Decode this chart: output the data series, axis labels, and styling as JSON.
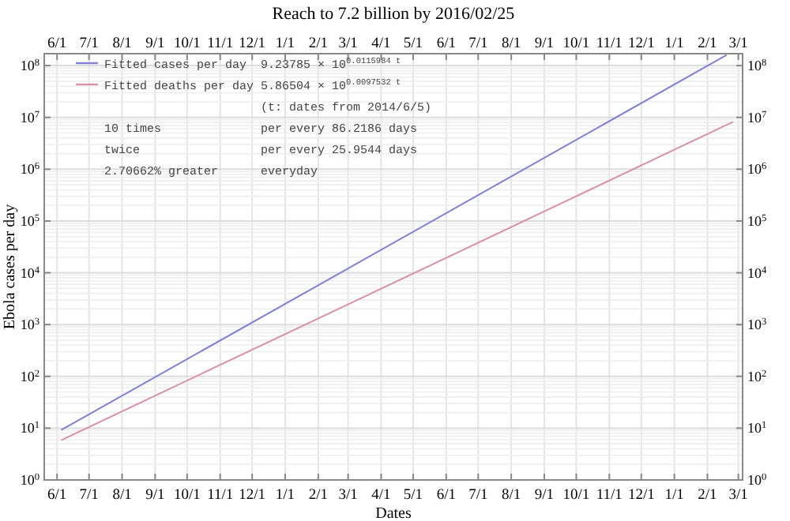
{
  "chart_data": {
    "type": "line",
    "title": "Reach to 7.2 billion by 2016/02/25",
    "xlabel": "Dates",
    "ylabel": "Ebola cases per day",
    "x": [
      "2014-06-05",
      "2015-02-25",
      "2016-02-25"
    ],
    "series": [
      {
        "name": "Fitted cases per day",
        "color": "#8080d8",
        "x": [
          "2014-06-05",
          "2015-02-25",
          "2016-02-19"
        ],
        "values": [
          9.24,
          10900,
          160000000
        ]
      },
      {
        "name": "Fitted deaths per day",
        "color": "#d890a8",
        "values": [
          5.87,
          2250,
          8180000
        ]
      }
    ],
    "xlim": [
      "2014-05-20",
      "2016-03-05"
    ],
    "xticks": [
      {
        "value": "2014-06-01",
        "label": "6/1"
      },
      {
        "value": "2014-07-01",
        "label": "7/1"
      },
      {
        "value": "2014-08-01",
        "label": "8/1"
      },
      {
        "value": "2014-09-01",
        "label": "9/1"
      },
      {
        "value": "2014-10-01",
        "label": "10/1"
      },
      {
        "value": "2014-11-01",
        "label": "11/1"
      },
      {
        "value": "2014-12-01",
        "label": "12/1"
      },
      {
        "value": "2015-01-01",
        "label": "1/1"
      },
      {
        "value": "2015-02-01",
        "label": "2/1"
      },
      {
        "value": "2015-03-01",
        "label": "3/1"
      },
      {
        "value": "2015-04-01",
        "label": "4/1"
      },
      {
        "value": "2015-05-01",
        "label": "5/1"
      },
      {
        "value": "2015-06-01",
        "label": "6/1"
      },
      {
        "value": "2015-07-01",
        "label": "7/1"
      },
      {
        "value": "2015-08-01",
        "label": "8/1"
      },
      {
        "value": "2015-09-01",
        "label": "9/1"
      },
      {
        "value": "2015-10-01",
        "label": "10/1"
      },
      {
        "value": "2015-11-01",
        "label": "11/1"
      },
      {
        "value": "2015-12-01",
        "label": "12/1"
      },
      {
        "value": "2016-01-01",
        "label": "1/1"
      },
      {
        "value": "2016-02-01",
        "label": "2/1"
      },
      {
        "value": "2016-03-01",
        "label": "3/1"
      }
    ],
    "x2lim": [
      "2014-05-20",
      "2016-03-05"
    ],
    "x2ticks": [
      {
        "value": "2014-06-01",
        "label": "6/1"
      },
      {
        "value": "2014-07-01",
        "label": "7/1"
      },
      {
        "value": "2014-08-01",
        "label": "8/1"
      },
      {
        "value": "2014-09-01",
        "label": "9/1"
      },
      {
        "value": "2014-10-01",
        "label": "10/1"
      },
      {
        "value": "2014-11-01",
        "label": "11/1"
      },
      {
        "value": "2014-12-01",
        "label": "12/1"
      },
      {
        "value": "2015-01-01",
        "label": "1/1"
      },
      {
        "value": "2015-02-01",
        "label": "2/1"
      },
      {
        "value": "2015-03-01",
        "label": "3/1"
      },
      {
        "value": "2015-04-01",
        "label": "4/1"
      },
      {
        "value": "2015-05-01",
        "label": "5/1"
      },
      {
        "value": "2015-06-01",
        "label": "6/1"
      },
      {
        "value": "2015-07-01",
        "label": "7/1"
      },
      {
        "value": "2015-08-01",
        "label": "8/1"
      },
      {
        "value": "2015-09-01",
        "label": "9/1"
      },
      {
        "value": "2015-10-01",
        "label": "10/1"
      },
      {
        "value": "2015-11-01",
        "label": "11/1"
      },
      {
        "value": "2015-12-01",
        "label": "12/1"
      },
      {
        "value": "2016-01-01",
        "label": "1/1"
      },
      {
        "value": "2016-02-01",
        "label": "2/1"
      },
      {
        "value": "2016-03-01",
        "label": "3/1"
      }
    ],
    "ylim": [
      1,
      170000000
    ],
    "yticks": [
      {
        "value": 1,
        "label": "10$^{0}$"
      },
      {
        "value": 10,
        "label": "10$^{1}$"
      },
      {
        "value": 100,
        "label": "10$^{2}$"
      },
      {
        "value": 1000,
        "label": "10$^{3}$"
      },
      {
        "value": 10000,
        "label": "10$^{4}$"
      },
      {
        "value": 100000,
        "label": "10$^{5}$"
      },
      {
        "value": 1000000,
        "label": "10$^{6}$"
      },
      {
        "value": 10000000,
        "label": "10$^{7}$"
      },
      {
        "value": 100000000,
        "label": "10$^{8}$"
      }
    ],
    "log": "y",
    "grid": true,
    "legend": "top left",
    "marker": "none",
    "line_style": "solid",
    "annotations": [
      "9.23785 × 10$^{0.0115984 t}$",
      "5.86504 × 10$^{0.0097532 t}$",
      "(t: dates from 2014/6/5)",
      "10 times",
      "per every 86.2186 days",
      "twice",
      "per every 25.9544 days",
      "2.70662% greater",
      "everyday"
    ]
  }
}
